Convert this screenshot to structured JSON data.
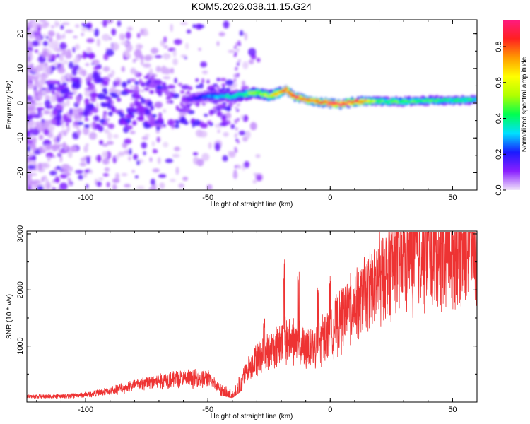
{
  "title": "KOM5.2026.038.11.15.G24",
  "chart_data": [
    {
      "type": "heatmap",
      "title": "KOM5.2026.038.11.15.G24",
      "xlabel": "Height of straight line (km)",
      "ylabel": "Frequency (Hz)",
      "xlim": [
        -124,
        60
      ],
      "ylim": [
        -25,
        24
      ],
      "xticks": [
        -100,
        -50,
        0,
        50
      ],
      "yticks": [
        20,
        10,
        0,
        -10,
        -20
      ],
      "colorbar": {
        "label": "Normalized spectral amplitude",
        "range": [
          0.0,
          0.95
        ],
        "ticks": [
          0.0,
          0.2,
          0.4,
          0.6,
          0.8
        ],
        "colormap": [
          "#f2e6fa",
          "#8a1fff",
          "#1a1aff",
          "#00e0ff",
          "#00ff50",
          "#b0ff00",
          "#ffff00",
          "#ff9a00",
          "#ff2020",
          "#ff1a80"
        ]
      },
      "ridge": {
        "height_km": [
          -60,
          -50,
          -40,
          -30,
          -25,
          -20,
          -18,
          -15,
          -10,
          -5,
          0,
          5,
          10,
          20,
          30,
          40,
          50,
          60
        ],
        "frequency_hz": [
          1,
          2,
          2,
          3,
          2,
          3,
          4,
          2,
          1,
          0.5,
          0,
          -0.3,
          0.5,
          0.5,
          0.5,
          0.8,
          0.8,
          1
        ],
        "amplitude": [
          0.1,
          0.25,
          0.35,
          0.5,
          0.55,
          0.75,
          0.8,
          0.85,
          0.75,
          0.8,
          0.9,
          0.9,
          0.85,
          0.45,
          0.45,
          0.42,
          0.4,
          0.4
        ]
      }
    },
    {
      "type": "line",
      "xlabel": "Height of straight line (km)",
      "ylabel": "SNR (10 * v/v)",
      "xlim": [
        -124,
        60
      ],
      "ylim": [
        0,
        3050
      ],
      "xticks": [
        -100,
        -50,
        0,
        50
      ],
      "yticks": [
        1000,
        2000,
        3000
      ],
      "color": "#ee3333",
      "series": [
        {
          "name": "SNR",
          "x": [
            -124,
            -110,
            -100,
            -90,
            -80,
            -70,
            -60,
            -50,
            -45,
            -40,
            -35,
            -30,
            -25,
            -20,
            -15,
            -10,
            -5,
            0,
            5,
            10,
            15,
            20,
            25,
            30,
            35,
            40,
            45,
            50,
            55,
            60
          ],
          "y": [
            100,
            100,
            130,
            200,
            300,
            380,
            420,
            420,
            250,
            150,
            500,
            800,
            900,
            1100,
            1100,
            950,
            1050,
            1250,
            1500,
            1750,
            1950,
            2200,
            2400,
            2550,
            2650,
            2700,
            2750,
            2800,
            2850,
            2850
          ]
        }
      ],
      "spikes": [
        {
          "x": -27,
          "y": 1550
        },
        {
          "x": -19,
          "y": 2550
        },
        {
          "x": -13,
          "y": 2350
        },
        {
          "x": -5,
          "y": 2100
        },
        {
          "x": 0,
          "y": 2250
        },
        {
          "x": 8,
          "y": 2300
        },
        {
          "x": 16,
          "y": 2500
        }
      ]
    }
  ]
}
